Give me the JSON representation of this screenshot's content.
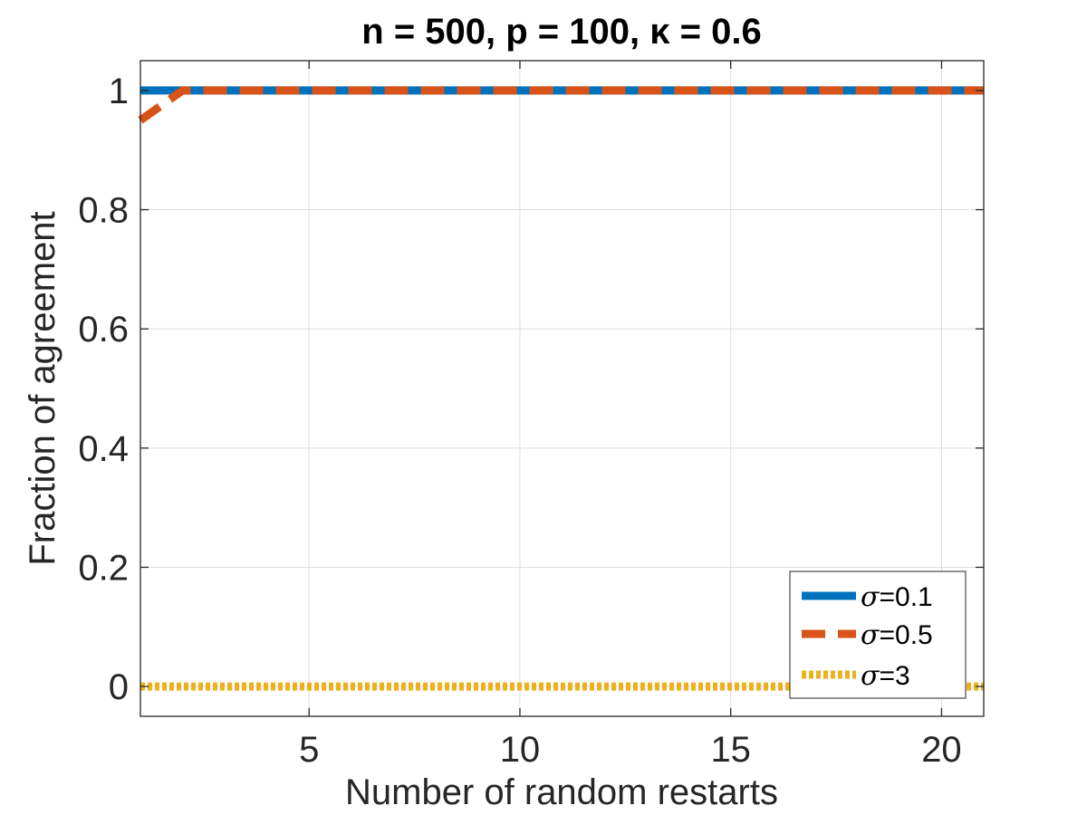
{
  "chart_data": {
    "type": "line",
    "title": "n = 500, p = 100, κ = 0.6",
    "xlabel": "Number of random restarts",
    "ylabel": "Fraction of agreement",
    "xlim": [
      1,
      21
    ],
    "ylim": [
      -0.05,
      1.05
    ],
    "xticks": [
      5,
      10,
      15,
      20
    ],
    "yticks": [
      0,
      0.2,
      0.4,
      0.6,
      0.8,
      1
    ],
    "xtick_labels": [
      "5",
      "10",
      "15",
      "20"
    ],
    "ytick_labels": [
      "0",
      "0.2",
      "0.4",
      "0.6",
      "0.8",
      "1"
    ],
    "grid": true,
    "legend_position": "bottom-right",
    "x": [
      1,
      2,
      3,
      4,
      5,
      6,
      7,
      8,
      9,
      10,
      11,
      12,
      13,
      14,
      15,
      16,
      17,
      18,
      19,
      20,
      21
    ],
    "series": [
      {
        "name": "σ=0.1",
        "symbol": "σ",
        "value_label": "=0.1",
        "color": "#0072BD",
        "style": "solid",
        "values": [
          1,
          1,
          1,
          1,
          1,
          1,
          1,
          1,
          1,
          1,
          1,
          1,
          1,
          1,
          1,
          1,
          1,
          1,
          1,
          1,
          1
        ]
      },
      {
        "name": "σ=0.5",
        "symbol": "σ",
        "value_label": "=0.5",
        "color": "#D95319",
        "style": "dashed",
        "values": [
          0.95,
          1,
          1,
          1,
          1,
          1,
          1,
          1,
          1,
          1,
          1,
          1,
          1,
          1,
          1,
          1,
          1,
          1,
          1,
          1,
          1
        ]
      },
      {
        "name": "σ=3",
        "symbol": "σ",
        "value_label": "=3",
        "color": "#EDB120",
        "style": "dotted",
        "values": [
          0,
          0,
          0,
          0,
          0,
          0,
          0,
          0,
          0,
          0,
          0,
          0,
          0,
          0,
          0,
          0,
          0,
          0,
          0,
          0,
          0
        ]
      }
    ]
  }
}
